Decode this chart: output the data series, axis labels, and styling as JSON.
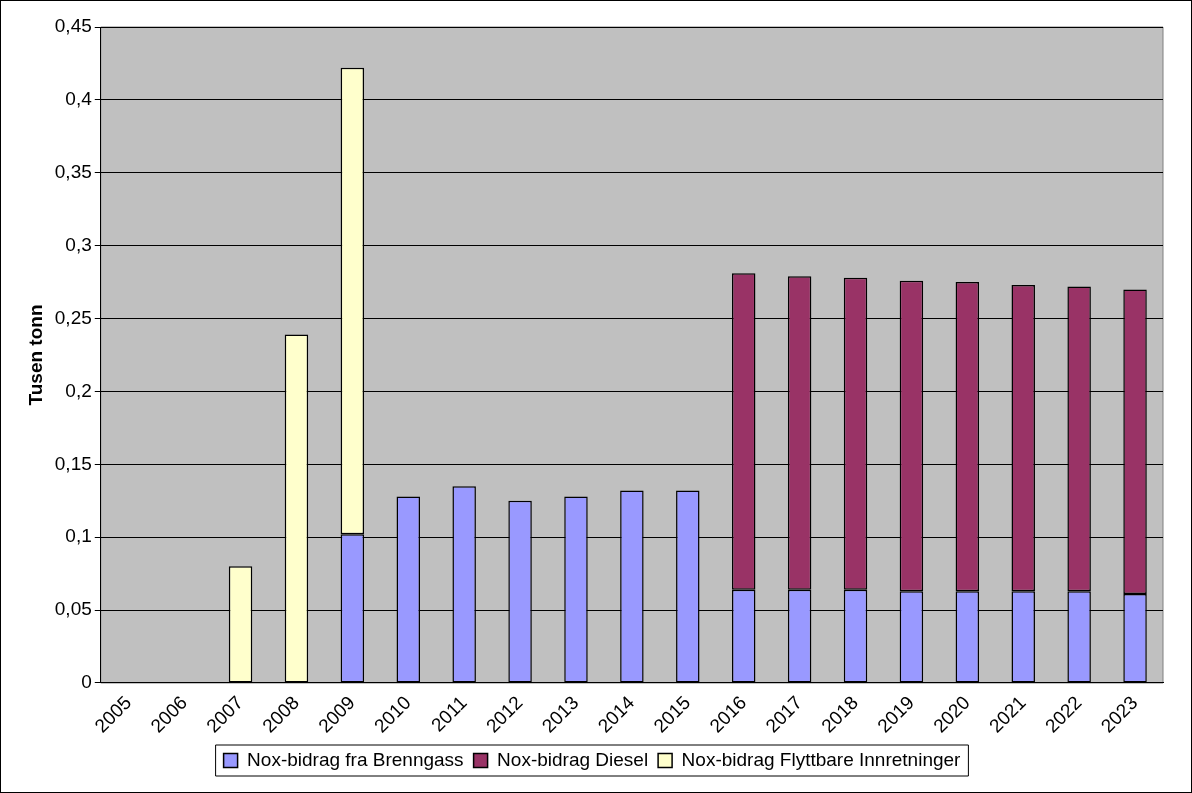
{
  "chart_data": {
    "type": "bar",
    "stacked": true,
    "ylabel": "Tusen tonn",
    "categories": [
      "2005",
      "2006",
      "2007",
      "2008",
      "2009",
      "2010",
      "2011",
      "2012",
      "2013",
      "2014",
      "2015",
      "2016",
      "2017",
      "2018",
      "2019",
      "2020",
      "2021",
      "2022",
      "2023"
    ],
    "series": [
      {
        "name": "Nox-bidrag fra Brenngass",
        "color": "#9999ff",
        "values": [
          null,
          null,
          null,
          null,
          0.102,
          0.128,
          0.135,
          0.125,
          0.128,
          0.132,
          0.132,
          0.064,
          0.064,
          0.064,
          0.063,
          0.063,
          0.063,
          0.063,
          0.061
        ]
      },
      {
        "name": "Nox-bidrag Diesel",
        "color": "#993366",
        "values": [
          null,
          null,
          null,
          null,
          null,
          null,
          null,
          null,
          null,
          null,
          null,
          0.217,
          0.215,
          0.214,
          0.213,
          0.212,
          0.21,
          0.209,
          0.209
        ]
      },
      {
        "name": "Nox-bidrag Flyttbare Innretninger",
        "color": "#ffffcc",
        "values": [
          null,
          null,
          0.08,
          0.239,
          0.32,
          null,
          null,
          null,
          null,
          null,
          null,
          null,
          null,
          null,
          null,
          null,
          null,
          null,
          null
        ]
      }
    ],
    "ylim": [
      0,
      0.45
    ],
    "yticks": [
      {
        "value": 0,
        "label": "0"
      },
      {
        "value": 0.05,
        "label": "0,05"
      },
      {
        "value": 0.1,
        "label": "0,1"
      },
      {
        "value": 0.15,
        "label": "0,15"
      },
      {
        "value": 0.2,
        "label": "0,2"
      },
      {
        "value": 0.25,
        "label": "0,25"
      },
      {
        "value": 0.3,
        "label": "0,3"
      },
      {
        "value": 0.35,
        "label": "0,35"
      },
      {
        "value": 0.4,
        "label": "0,4"
      },
      {
        "value": 0.45,
        "label": "0,45"
      }
    ],
    "grid": "y",
    "legend": "bottom"
  }
}
